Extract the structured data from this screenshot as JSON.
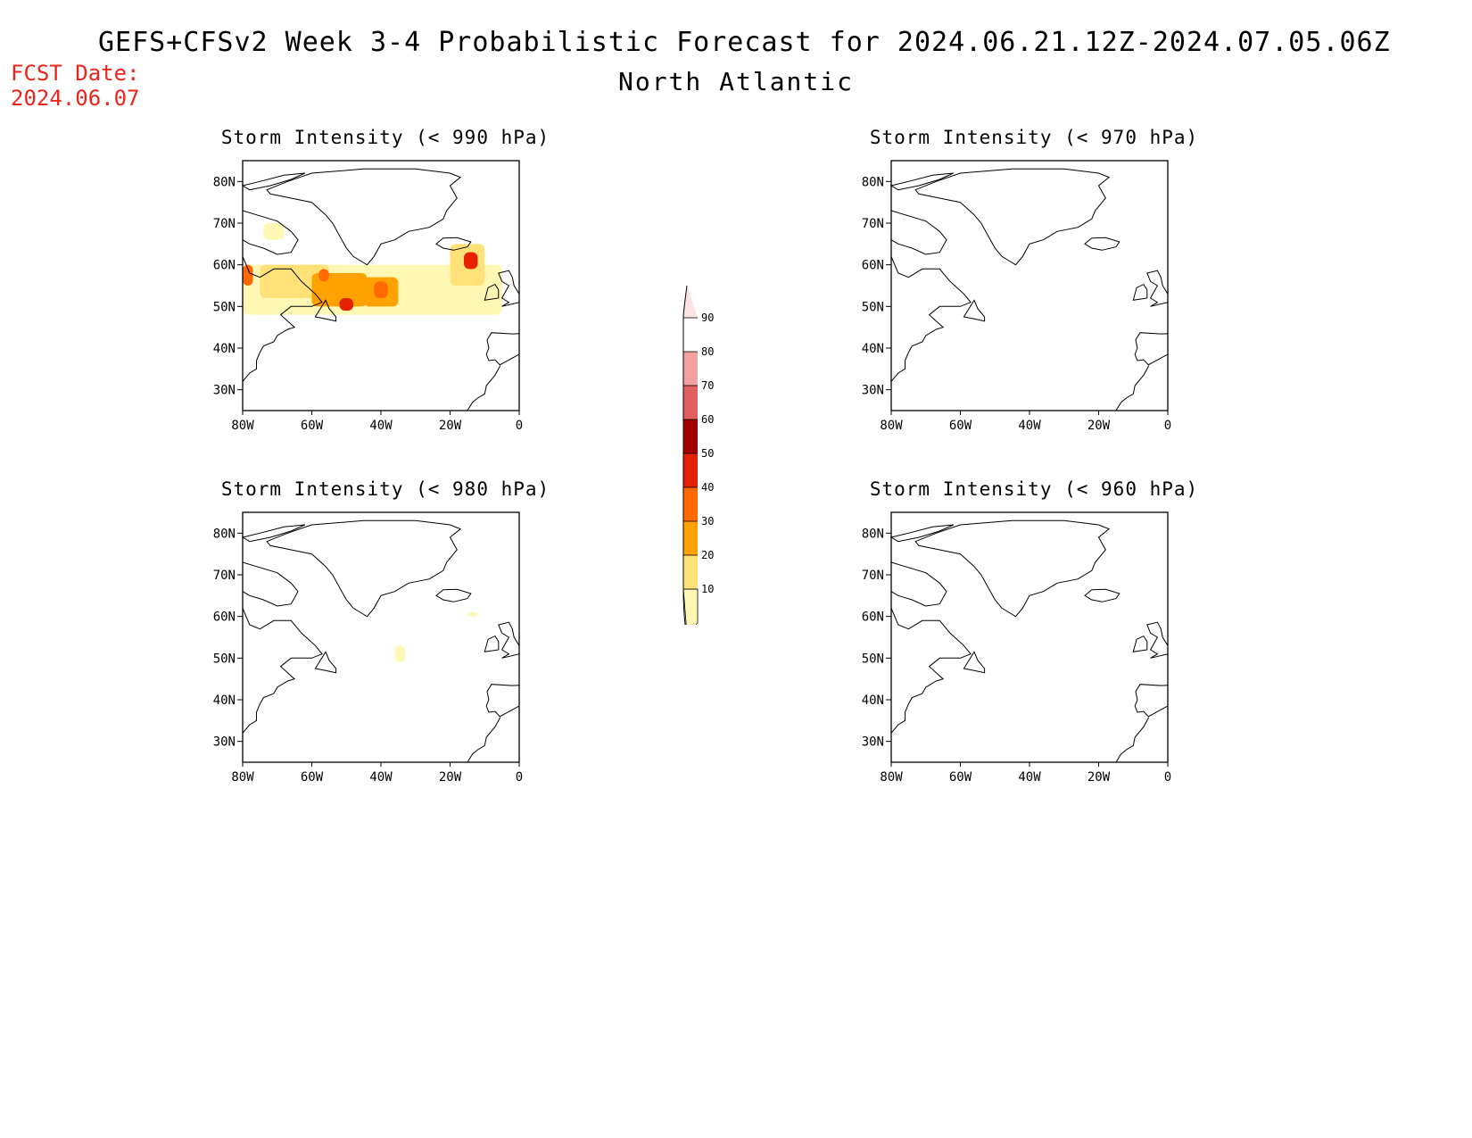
{
  "header": {
    "title": "GEFS+CFSv2 Week 3-4 Probabilistic Forecast for 2024.06.21.12Z-2024.07.05.06Z",
    "region": "North Atlantic",
    "fcst_label": "FCST Date:",
    "fcst_date": "2024.06.07"
  },
  "map_extent": {
    "lon": [
      -80,
      0
    ],
    "lat": [
      25,
      85
    ]
  },
  "axes": {
    "lat_ticks": [
      "30N",
      "40N",
      "50N",
      "60N",
      "70N",
      "80N"
    ],
    "lon_ticks": [
      "80W",
      "60W",
      "40W",
      "20W",
      "0"
    ]
  },
  "panels": [
    {
      "id": "p990",
      "title": "Storm Intensity (< 990 hPa)",
      "threshold_hpa": 990
    },
    {
      "id": "p970",
      "title": "Storm Intensity (< 970 hPa)",
      "threshold_hpa": 970
    },
    {
      "id": "p980",
      "title": "Storm Intensity (< 980 hPa)",
      "threshold_hpa": 980
    },
    {
      "id": "p960",
      "title": "Storm Intensity (< 960 hPa)",
      "threshold_hpa": 960
    }
  ],
  "colorbar": {
    "levels": [
      "10",
      "20",
      "30",
      "40",
      "50",
      "60",
      "70",
      "80",
      "90"
    ],
    "colors": [
      "#fff8b4",
      "#ffe178",
      "#ffa200",
      "#ff6a00",
      "#e52100",
      "#a50000",
      "#e06060",
      "#f2a0a0",
      "#fde2e2"
    ]
  },
  "probability_areas": {
    "p990": [
      {
        "lon": [
          -80,
          -5
        ],
        "lat": [
          48,
          60
        ],
        "level": 1
      },
      {
        "lon": [
          -74,
          -68
        ],
        "lat": [
          66,
          70
        ],
        "level": 1
      },
      {
        "lon": [
          -75,
          -55
        ],
        "lat": [
          52,
          60
        ],
        "level": 2
      },
      {
        "lon": [
          -60,
          -44
        ],
        "lat": [
          50,
          58
        ],
        "level": 3
      },
      {
        "lon": [
          -45,
          -35
        ],
        "lat": [
          50,
          57
        ],
        "level": 3
      },
      {
        "lon": [
          -20,
          -10
        ],
        "lat": [
          55,
          65
        ],
        "level": 2
      },
      {
        "lon": [
          -58,
          -55
        ],
        "lat": [
          56,
          59
        ],
        "level": 4
      },
      {
        "lon": [
          -42,
          -38
        ],
        "lat": [
          52,
          56
        ],
        "level": 4
      },
      {
        "lon": [
          -16,
          -12
        ],
        "lat": [
          59,
          63
        ],
        "level": 5
      },
      {
        "lon": [
          -52,
          -48
        ],
        "lat": [
          49,
          52
        ],
        "level": 5
      },
      {
        "lon": [
          -80,
          -77
        ],
        "lat": [
          55,
          60
        ],
        "level": 4
      }
    ],
    "p980": [
      {
        "lon": [
          -36,
          -33
        ],
        "lat": [
          49,
          53
        ],
        "level": 1
      },
      {
        "lon": [
          -15,
          -12
        ],
        "lat": [
          60,
          61
        ],
        "level": 1
      }
    ],
    "p970": [],
    "p960": []
  }
}
